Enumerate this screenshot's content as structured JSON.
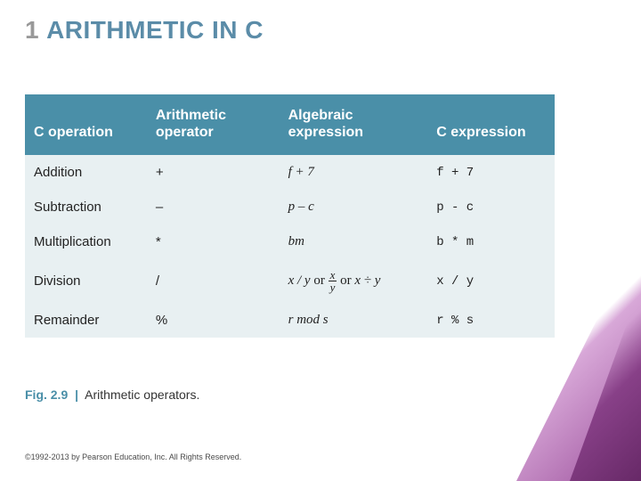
{
  "title_number": "1",
  "title_text": "ARITHMETIC IN C",
  "table": {
    "headers": [
      "C operation",
      "Arithmetic operator",
      "Algebraic expression",
      "C expression"
    ],
    "rows": [
      {
        "op": "Addition",
        "sym": "+",
        "alg": "f + 7",
        "cexpr": "f + 7"
      },
      {
        "op": "Subtraction",
        "sym": "–",
        "alg": "p – c",
        "cexpr": "p - c"
      },
      {
        "op": "Multiplication",
        "sym": "*",
        "alg": "bm",
        "cexpr": "b * m"
      },
      {
        "op": "Division",
        "sym": "/",
        "alg_div": {
          "a": "x / y",
          "b_num": "x",
          "b_den": "y",
          "c": "x ÷ y"
        },
        "cexpr": "x / y"
      },
      {
        "op": "Remainder",
        "sym": "%",
        "alg": "r mod s",
        "cexpr": "r % s"
      }
    ]
  },
  "caption_label": "Fig. 2.9",
  "caption_text": "Arithmetic operators.",
  "copyright": "©1992-2013 by Pearson Education, Inc. All Rights Reserved."
}
